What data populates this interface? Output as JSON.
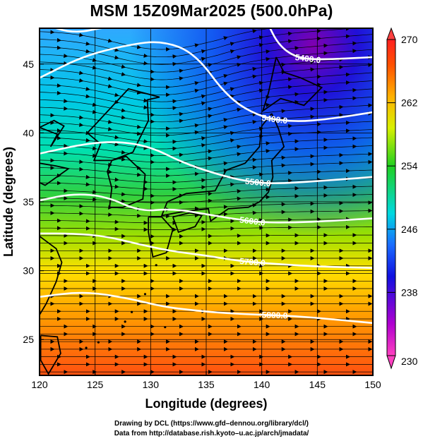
{
  "title": "MSM 15Z09Mar2025 (500.0hPa)",
  "chart_data": {
    "type": "heatmap",
    "title": "MSM 15Z09Mar2025 (500.0hPa)",
    "xlabel": "Longitude (degrees)",
    "ylabel": "Latitude  (degrees)",
    "xlim": [
      120,
      150
    ],
    "ylim": [
      22.4,
      47.6
    ],
    "x_ticks": [
      "120",
      "125",
      "130",
      "135",
      "140",
      "145",
      "150"
    ],
    "y_ticks": [
      "25",
      "30",
      "35",
      "40",
      "45"
    ],
    "grid": true,
    "colorbar": {
      "min": 230,
      "max": 270,
      "ticks": [
        "230",
        "238",
        "246",
        "254",
        "262",
        "270"
      ],
      "placement": "right"
    },
    "colors": {
      "cold": "#800080",
      "cool": "#0000ff",
      "mid": "#00e0e0",
      "warm": "#ffff00",
      "hot": "#ff0000",
      "contour": "#ffffff",
      "coast": "#000000"
    },
    "contours": [
      {
        "label": "5400.0",
        "points": [
          [
            120,
            48.0
          ],
          [
            123,
            47.2
          ],
          [
            126,
            47.7
          ],
          [
            129,
            47.9
          ],
          [
            132,
            48.0
          ],
          [
            134.5,
            47.7
          ]
        ]
      },
      {
        "label": "5400.0",
        "points": [
          [
            120,
            44.0
          ],
          [
            124,
            45.6
          ],
          [
            128,
            46.4
          ],
          [
            131,
            46.7
          ],
          [
            134,
            45.8
          ],
          [
            137,
            42.5
          ],
          [
            140,
            41.1
          ],
          [
            143,
            40.8
          ],
          [
            146,
            41.0
          ],
          [
            150,
            41.5
          ]
        ]
      },
      {
        "label": "5400.0",
        "points": [
          [
            140.5,
            48.0
          ],
          [
            141.5,
            46.4
          ],
          [
            143,
            45.5
          ],
          [
            145,
            45.3
          ],
          [
            150,
            45.5
          ]
        ]
      },
      {
        "label": "5500.0",
        "points": [
          [
            120,
            38.5
          ],
          [
            124,
            39.2
          ],
          [
            127,
            39.4
          ],
          [
            130,
            39.0
          ],
          [
            133,
            37.8
          ],
          [
            136,
            37.0
          ],
          [
            138.5,
            36.5
          ],
          [
            141,
            36.3
          ],
          [
            145,
            36.5
          ],
          [
            150,
            36.8
          ]
        ]
      },
      {
        "label": "5600.0",
        "points": [
          [
            120,
            35.1
          ],
          [
            123,
            35.6
          ],
          [
            126,
            35.4
          ],
          [
            129,
            34.3
          ],
          [
            132,
            34.5
          ],
          [
            135,
            34.1
          ],
          [
            138,
            33.7
          ],
          [
            140,
            33.5
          ],
          [
            143,
            33.5
          ],
          [
            146,
            33.6
          ],
          [
            150,
            33.8
          ]
        ]
      },
      {
        "label": "5700.0",
        "points": [
          [
            120,
            32.7
          ],
          [
            123,
            32.7
          ],
          [
            126,
            32.5
          ],
          [
            129,
            31.9
          ],
          [
            132,
            31.4
          ],
          [
            135,
            31.1
          ],
          [
            138,
            30.7
          ],
          [
            141,
            30.5
          ],
          [
            145,
            30.3
          ],
          [
            150,
            30.2
          ]
        ]
      },
      {
        "label": "5800.0",
        "points": [
          [
            120,
            28.1
          ],
          [
            124,
            28.5
          ],
          [
            128,
            28.0
          ],
          [
            131,
            27.4
          ],
          [
            134,
            27.1
          ],
          [
            137,
            26.9
          ],
          [
            140,
            26.8
          ],
          [
            143,
            26.7
          ],
          [
            146,
            26.5
          ],
          [
            150,
            26.2
          ]
        ]
      }
    ]
  },
  "credits": {
    "line1": "Drawing by DCL (https://www.gfd–dennou.org/library/dcl/)",
    "line2": "Data from http://database.rish.kyoto–u.ac.jp/arch/jmadata/"
  }
}
